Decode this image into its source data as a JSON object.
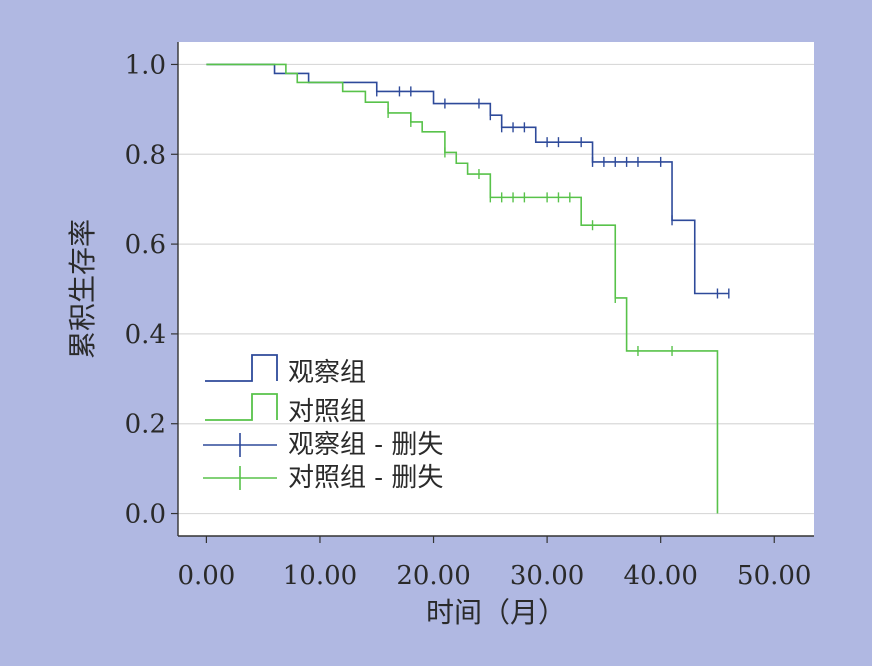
{
  "chart_data": {
    "type": "line",
    "title": "",
    "xlabel": "时间（月）",
    "ylabel": "累积生存率",
    "xlim": [
      -2.5,
      53.5
    ],
    "ylim": [
      -0.05,
      1.05
    ],
    "x_ticks": [
      "0.00",
      "10.00",
      "20.00",
      "30.00",
      "40.00",
      "50.00"
    ],
    "x_tick_values": [
      0,
      10,
      20,
      30,
      40,
      50
    ],
    "y_ticks": [
      "0.0",
      "0.2",
      "0.4",
      "0.6",
      "0.8",
      "1.0"
    ],
    "y_tick_values": [
      0,
      0.2,
      0.4,
      0.6,
      0.8,
      1.0
    ],
    "grid": "horizontal",
    "legend_position": "bottom-left",
    "colors": {
      "observation": "#2e4a9a",
      "control": "#58c24a",
      "background": "#b0b8e2",
      "plot_bg": "#ffffff"
    },
    "legend": [
      "观察组",
      "对照组",
      "观察组 - 删失",
      "对照组 - 删失"
    ],
    "series": [
      {
        "name": "观察组",
        "color": "#2e4a9a",
        "steps": [
          [
            0,
            1.0
          ],
          [
            6,
            0.98
          ],
          [
            9,
            0.96
          ],
          [
            15,
            0.94
          ],
          [
            20,
            0.913
          ],
          [
            25,
            0.887
          ],
          [
            26,
            0.86
          ],
          [
            29,
            0.827
          ],
          [
            34,
            0.783
          ],
          [
            41,
            0.653
          ],
          [
            43,
            0.49
          ],
          [
            46,
            0.49
          ]
        ],
        "censored": [
          [
            15,
            0.94
          ],
          [
            17,
            0.94
          ],
          [
            18,
            0.94
          ],
          [
            21,
            0.913
          ],
          [
            24,
            0.913
          ],
          [
            25,
            0.887
          ],
          [
            26,
            0.86
          ],
          [
            27,
            0.86
          ],
          [
            28,
            0.86
          ],
          [
            30,
            0.827
          ],
          [
            31,
            0.827
          ],
          [
            33,
            0.827
          ],
          [
            34,
            0.783
          ],
          [
            35,
            0.783
          ],
          [
            36,
            0.783
          ],
          [
            37,
            0.783
          ],
          [
            38,
            0.783
          ],
          [
            40,
            0.783
          ],
          [
            41,
            0.653
          ],
          [
            45,
            0.49
          ],
          [
            46,
            0.49
          ]
        ]
      },
      {
        "name": "对照组",
        "color": "#58c24a",
        "steps": [
          [
            0,
            1.0
          ],
          [
            7,
            0.98
          ],
          [
            8,
            0.96
          ],
          [
            12,
            0.94
          ],
          [
            14,
            0.916
          ],
          [
            16,
            0.892
          ],
          [
            18,
            0.872
          ],
          [
            19,
            0.85
          ],
          [
            21,
            0.804
          ],
          [
            22,
            0.78
          ],
          [
            23,
            0.756
          ],
          [
            25,
            0.704
          ],
          [
            33,
            0.642
          ],
          [
            36,
            0.48
          ],
          [
            37,
            0.362
          ],
          [
            45,
            0.0
          ]
        ],
        "censored": [
          [
            16,
            0.892
          ],
          [
            18,
            0.872
          ],
          [
            21,
            0.804
          ],
          [
            24,
            0.756
          ],
          [
            25,
            0.704
          ],
          [
            26,
            0.704
          ],
          [
            27,
            0.704
          ],
          [
            28,
            0.704
          ],
          [
            30,
            0.704
          ],
          [
            31,
            0.704
          ],
          [
            32,
            0.704
          ],
          [
            34,
            0.642
          ],
          [
            36,
            0.48
          ],
          [
            38,
            0.362
          ],
          [
            41,
            0.362
          ]
        ]
      }
    ]
  }
}
